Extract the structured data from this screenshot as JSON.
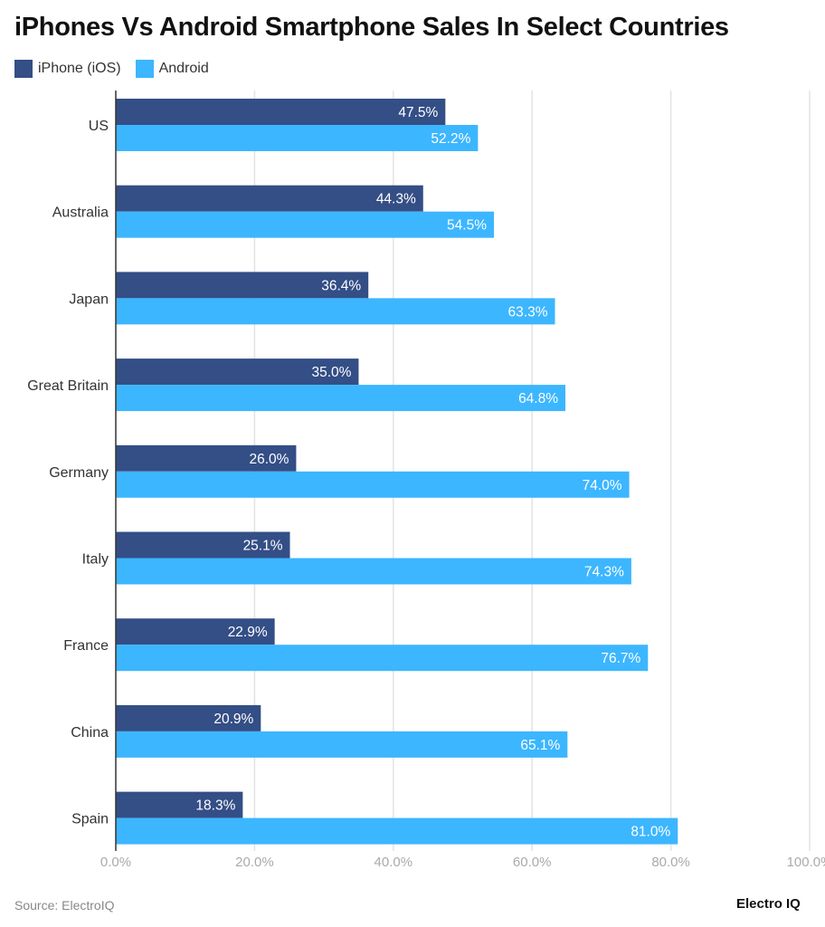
{
  "chart_data": {
    "type": "bar",
    "orientation": "horizontal",
    "title": "iPhones Vs Android Smartphone Sales In Select Countries",
    "categories": [
      "US",
      "Australia",
      "Japan",
      "Great Britain",
      "Germany",
      "Italy",
      "France",
      "China",
      "Spain"
    ],
    "series": [
      {
        "name": "iPhone (iOS)",
        "color": "#344e86",
        "values": [
          47.5,
          44.3,
          36.4,
          35.0,
          26.0,
          25.1,
          22.9,
          20.9,
          18.3
        ]
      },
      {
        "name": "Android",
        "color": "#3cb6ff",
        "values": [
          52.2,
          54.5,
          63.3,
          64.8,
          74.0,
          74.3,
          76.7,
          65.1,
          81.0
        ]
      }
    ],
    "xlim": [
      0,
      100
    ],
    "xticks": [
      "0.0%",
      "20.0%",
      "40.0%",
      "60.0%",
      "80.0%",
      "100.0%"
    ],
    "grid": true,
    "legend": "top-left",
    "value_suffix": "%"
  },
  "footer": {
    "source": "Source: ElectroIQ",
    "logo": "Electro IQ"
  }
}
